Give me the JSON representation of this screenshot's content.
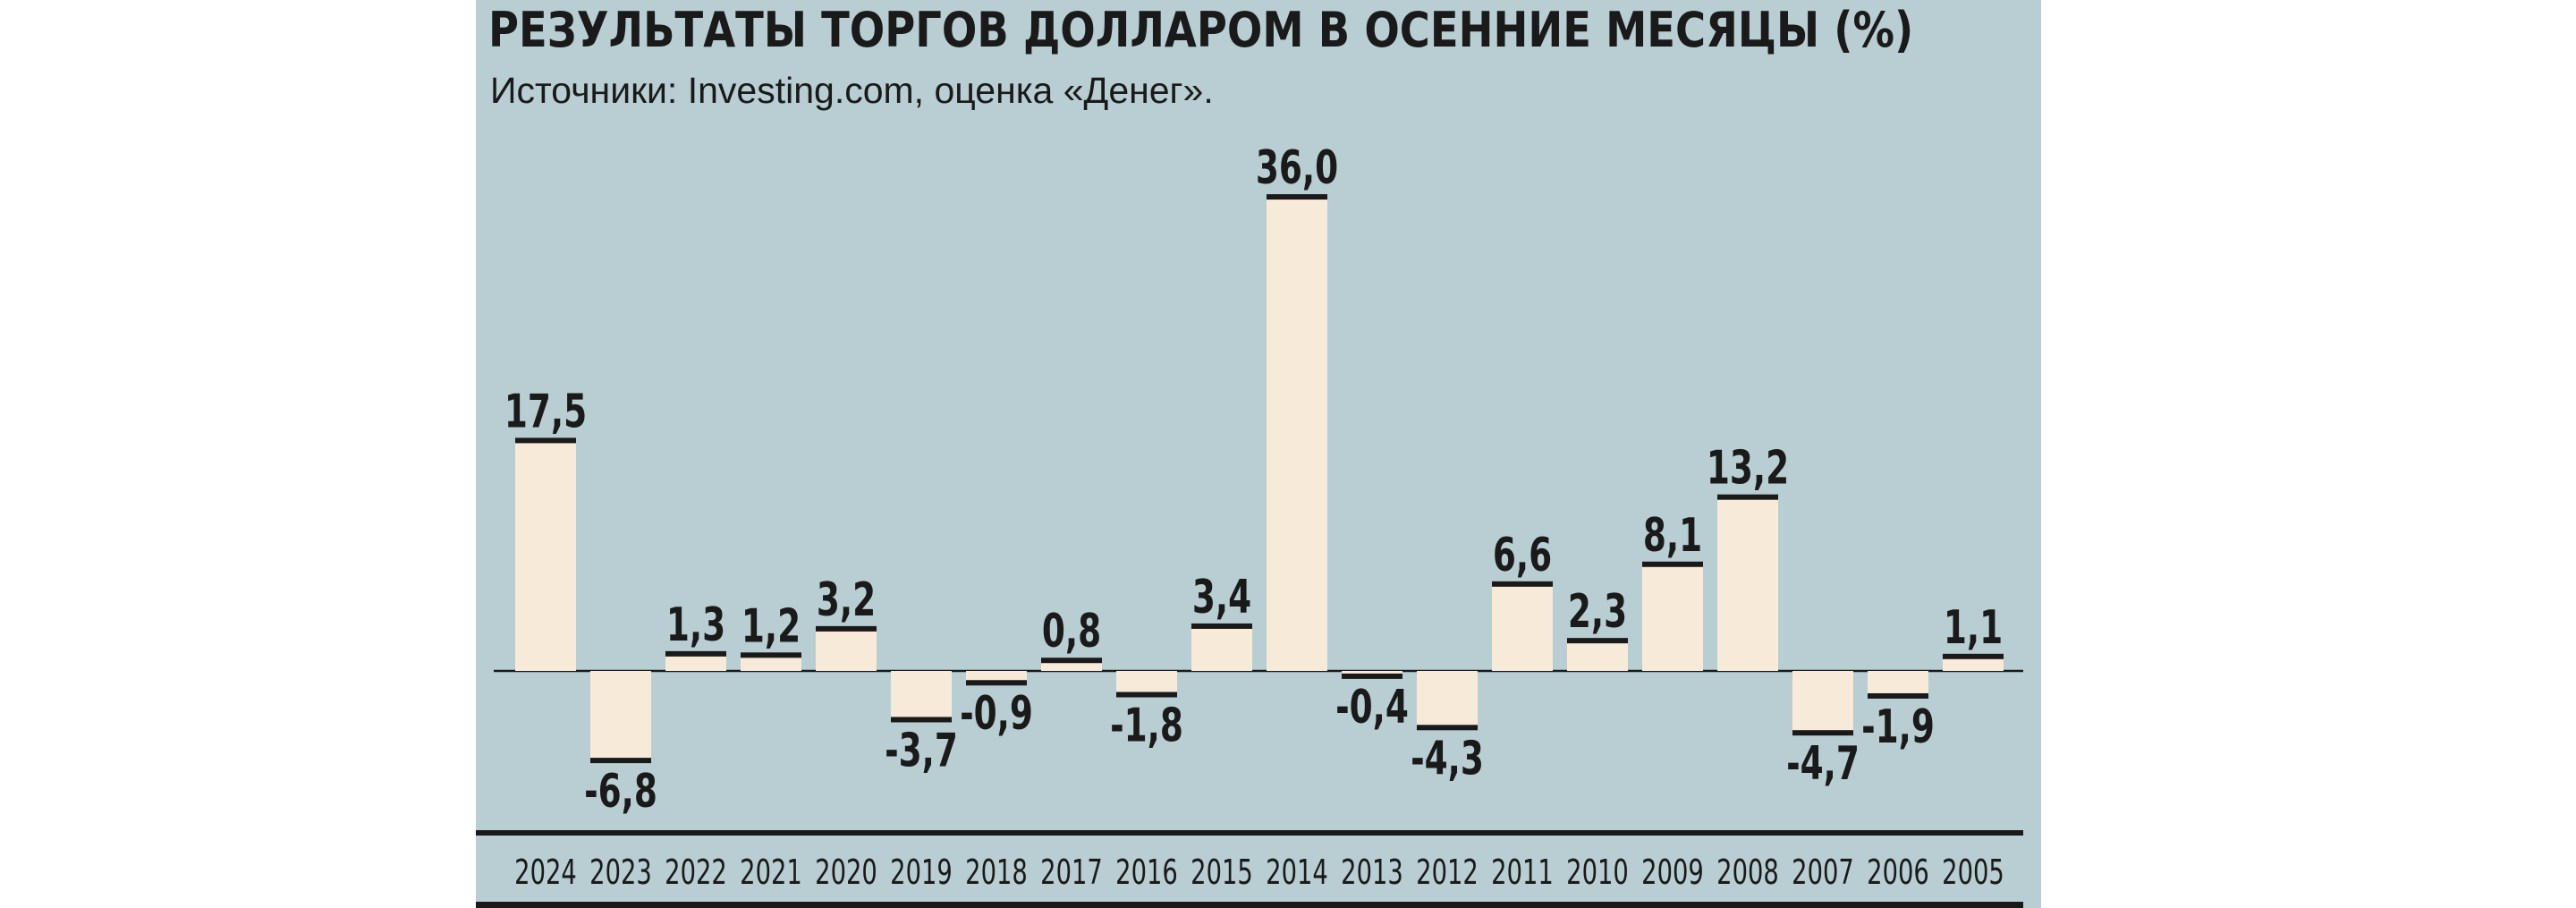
{
  "chart_data": {
    "type": "bar",
    "title": "РЕЗУЛЬТАТЫ ТОРГОВ ДОЛЛАРОМ В ОСЕННИЕ МЕСЯЦЫ (%)",
    "subtitle": "Источники: Investing.com, оценка «Денег».",
    "categories": [
      "2024",
      "2023",
      "2022",
      "2021",
      "2020",
      "2019",
      "2018",
      "2017",
      "2016",
      "2015",
      "2014",
      "2013",
      "2012",
      "2011",
      "2010",
      "2009",
      "2008",
      "2007",
      "2006",
      "2005"
    ],
    "values": [
      17.5,
      -6.8,
      1.3,
      1.2,
      3.2,
      -3.7,
      -0.9,
      0.8,
      -1.8,
      3.4,
      36.0,
      -0.4,
      -4.3,
      6.6,
      2.3,
      8.1,
      13.2,
      -4.7,
      -1.9,
      1.1
    ],
    "labels": [
      "17,5",
      "-6,8",
      "1,3",
      "1,2",
      "3,2",
      "-3,7",
      "-0,9",
      "0,8",
      "-1,8",
      "3,4",
      "36,0",
      "-0,4",
      "-4,3",
      "6,6",
      "2,3",
      "8,1",
      "13,2",
      "-4,7",
      "-1,9",
      "1,1"
    ],
    "xlabel": "",
    "ylabel": "",
    "ylim": [
      -10,
      40
    ],
    "grid": false,
    "legend": "none",
    "colors": {
      "background": "#b8ced3",
      "bar": "#f8ead8",
      "ink": "#1a1a1a"
    }
  }
}
